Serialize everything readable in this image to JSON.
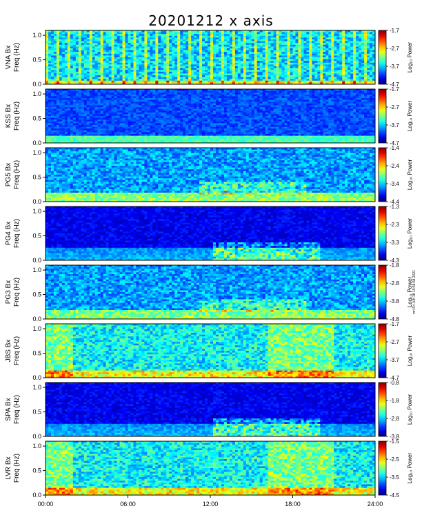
{
  "title": "20201212  x axis",
  "footer_note": "mri Fri Jun 18 10:55:58 2021",
  "chart_data": {
    "type": "heatmap",
    "title": "20201212  x axis",
    "xlabel": "",
    "x_ticks": [
      "00:00",
      "06:00",
      "12:00",
      "18:00",
      "24:00"
    ],
    "xlim_hours": [
      0,
      24
    ],
    "y_ticks": [
      "0.0",
      "0.5",
      "1.0"
    ],
    "ylim": [
      0,
      1.1
    ],
    "colorbar_label": "Log₁₀ Power",
    "panels": [
      {
        "station": "VNA Bx",
        "freq_label": "Freq (Hz)",
        "cbar_ticks": [
          "-1.7",
          "-2.7",
          "-3.7",
          "-4.7"
        ],
        "style": "stripes"
      },
      {
        "station": "KSS Bx",
        "freq_label": "Freq (Hz)",
        "cbar_ticks": [
          "-1.7",
          "-2.7",
          "-3.7",
          "-4.7"
        ],
        "style": "quiet"
      },
      {
        "station": "PG5 Bx",
        "freq_label": "Freq (Hz)",
        "cbar_ticks": [
          "-1.4",
          "-2.4",
          "-3.4",
          "-4.4"
        ],
        "style": "gaps"
      },
      {
        "station": "PG4 Bx",
        "freq_label": "Freq (Hz)",
        "cbar_ticks": [
          "-1.3",
          "-2.3",
          "-3.3",
          "-4.3"
        ],
        "style": "dark"
      },
      {
        "station": "PG3 Bx",
        "freq_label": "Freq (Hz)",
        "cbar_ticks": [
          "-1.8",
          "-2.8",
          "-3.8",
          "-4.8"
        ],
        "style": "gaps"
      },
      {
        "station": "JBS Bx",
        "freq_label": "Freq (Hz)",
        "cbar_ticks": [
          "-1.7",
          "-2.7",
          "-3.7",
          "-4.7"
        ],
        "style": "bright"
      },
      {
        "station": "SPA Bx",
        "freq_label": "Freq (Hz)",
        "cbar_ticks": [
          "-0.8",
          "-1.8",
          "-2.8",
          "-3.8"
        ],
        "style": "dark"
      },
      {
        "station": "LVR Bx",
        "freq_label": "Freq (Hz)",
        "cbar_ticks": [
          "-1.5",
          "-2.5",
          "-3.5",
          "-4.5"
        ],
        "style": "bright"
      }
    ]
  }
}
